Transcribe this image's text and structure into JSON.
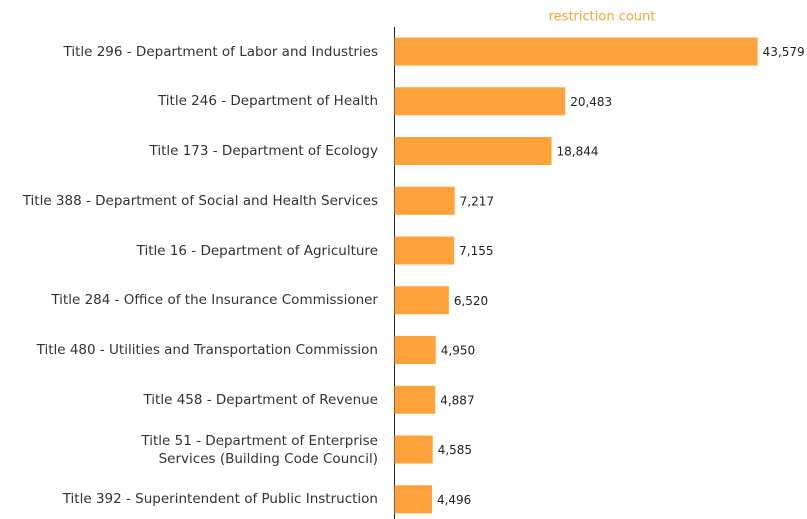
{
  "chart_data": {
    "type": "bar",
    "orientation": "horizontal",
    "x_label": "restriction count",
    "categories": [
      "Title 296 - Department of Labor and Industries",
      "Title 246 - Department of Health",
      "Title 173 - Department of Ecology",
      "Title 388 - Department of Social and Health Services",
      "Title 16 - Department of Agriculture",
      "Title 284 - Office of the Insurance Commissioner",
      "Title 480 - Utilities and Transportation Commission",
      "Title 458 - Department of Revenue",
      "Title 51 - Department of Enterprise\nServices (Building Code Council)",
      "Title 392 - Superintendent of Public Instruction"
    ],
    "values": [
      43579,
      20483,
      18844,
      7217,
      7155,
      6520,
      4950,
      4887,
      4585,
      4496
    ],
    "value_labels": [
      "43,579",
      "20,483",
      "18,844",
      "7,217",
      "7,155",
      "6,520",
      "4,950",
      "4,887",
      "4,585",
      "4,496"
    ],
    "color": "#ffa23b",
    "label_color": "#ffa23b",
    "xlim": [
      0,
      49500
    ]
  }
}
